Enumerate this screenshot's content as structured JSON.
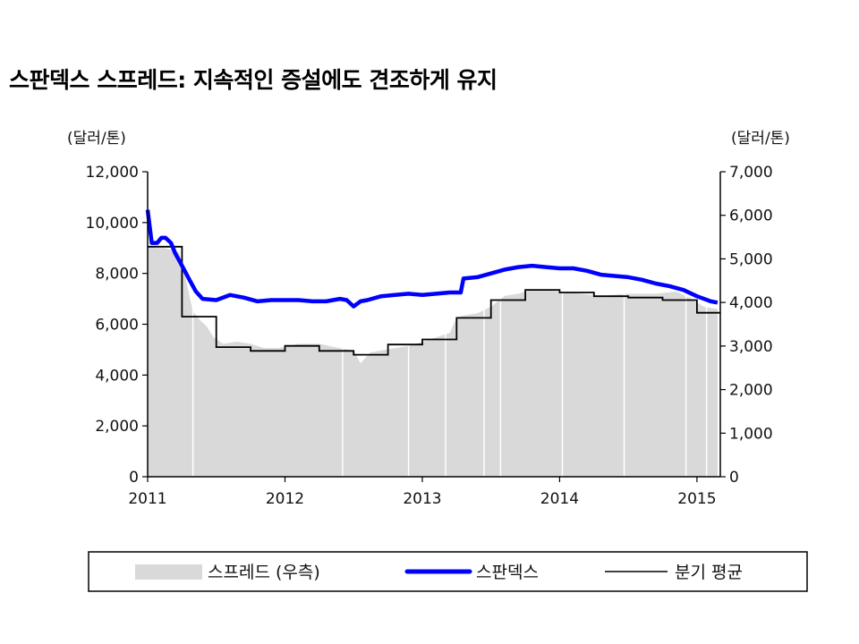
{
  "chart_data": {
    "type": "line",
    "title": "스판덱스 스프레드: 지속적인 증설에도 견조하게 유지",
    "y_left": {
      "unit": "(달러/톤)",
      "range": [
        0,
        12000
      ],
      "ticks": [
        "0",
        "2,000",
        "4,000",
        "6,000",
        "8,000",
        "10,000",
        "12,000"
      ]
    },
    "y_right": {
      "unit": "(달러/톤)",
      "range": [
        0,
        7000
      ],
      "ticks": [
        "0",
        "1,000",
        "2,000",
        "3,000",
        "4,000",
        "5,000",
        "6,000",
        "7,000"
      ]
    },
    "x_ticks": [
      "2011",
      "2012",
      "2013",
      "2014",
      "2015"
    ],
    "x_range": [
      2011.0,
      2015.17
    ],
    "grid": false,
    "legend_position": "bottom",
    "colors": {
      "spread": "#d9d9d9",
      "spandex": "#0000ff",
      "quarterly": "#000000"
    },
    "series": [
      {
        "name": "스프레드 (우측)",
        "axis": "right",
        "style": "area",
        "x": [
          2011.0,
          2011.06,
          2011.12,
          2011.18,
          2011.23,
          2011.28,
          2011.33,
          2011.38,
          2011.43,
          2011.48,
          2011.55,
          2011.65,
          2011.75,
          2011.85,
          2011.95,
          2012.1,
          2012.25,
          2012.4,
          2012.5,
          2012.55,
          2012.62,
          2012.7,
          2012.8,
          2012.9,
          2013.0,
          2013.1,
          2013.2,
          2013.25,
          2013.3,
          2013.4,
          2013.5,
          2013.6,
          2013.7,
          2013.8,
          2013.9,
          2014.0,
          2014.15,
          2014.3,
          2014.5,
          2014.7,
          2014.85,
          2014.95,
          2015.05,
          2015.15
        ],
        "values": [
          5300,
          5250,
          5250,
          5200,
          5150,
          4500,
          3800,
          3600,
          3450,
          3200,
          3050,
          3100,
          3050,
          2950,
          2950,
          3050,
          3050,
          2950,
          2900,
          2600,
          2850,
          2900,
          2950,
          3000,
          3100,
          3200,
          3300,
          3650,
          3700,
          3750,
          3900,
          4150,
          4200,
          4300,
          4300,
          4250,
          4200,
          4150,
          4200,
          4200,
          4250,
          4100,
          3900,
          3850
        ]
      },
      {
        "name": "스판덱스",
        "axis": "left",
        "style": "line",
        "x": [
          2011.0,
          2011.03,
          2011.07,
          2011.1,
          2011.13,
          2011.17,
          2011.2,
          2011.25,
          2011.3,
          2011.35,
          2011.4,
          2011.5,
          2011.6,
          2011.7,
          2011.8,
          2011.9,
          2012.0,
          2012.1,
          2012.2,
          2012.3,
          2012.4,
          2012.45,
          2012.5,
          2012.55,
          2012.6,
          2012.7,
          2012.8,
          2012.9,
          2013.0,
          2013.1,
          2013.2,
          2013.28,
          2013.3,
          2013.4,
          2013.5,
          2013.6,
          2013.7,
          2013.8,
          2013.9,
          2014.0,
          2014.1,
          2014.2,
          2014.3,
          2014.4,
          2014.5,
          2014.6,
          2014.7,
          2014.8,
          2014.9,
          2015.0,
          2015.1,
          2015.15
        ],
        "values": [
          10500,
          9200,
          9200,
          9400,
          9400,
          9200,
          8800,
          8300,
          7800,
          7300,
          7000,
          6950,
          7150,
          7050,
          6900,
          6950,
          6950,
          6950,
          6900,
          6900,
          7000,
          6950,
          6700,
          6900,
          6950,
          7100,
          7150,
          7200,
          7150,
          7200,
          7250,
          7250,
          7800,
          7850,
          8000,
          8150,
          8250,
          8300,
          8250,
          8200,
          8200,
          8100,
          7950,
          7900,
          7850,
          7750,
          7600,
          7500,
          7350,
          7100,
          6900,
          6850
        ]
      },
      {
        "name": "분기 평균",
        "axis": "left",
        "style": "step",
        "x": [
          2011.0,
          2011.25,
          2011.5,
          2011.75,
          2012.0,
          2012.25,
          2012.5,
          2012.75,
          2013.0,
          2013.25,
          2013.5,
          2013.75,
          2014.0,
          2014.25,
          2014.5,
          2014.75,
          2015.0,
          2015.17
        ],
        "values": [
          9050,
          6300,
          5100,
          4950,
          5150,
          4950,
          4800,
          5200,
          5400,
          6250,
          6950,
          7350,
          7250,
          7100,
          7050,
          6950,
          6450,
          6450
        ]
      }
    ]
  }
}
